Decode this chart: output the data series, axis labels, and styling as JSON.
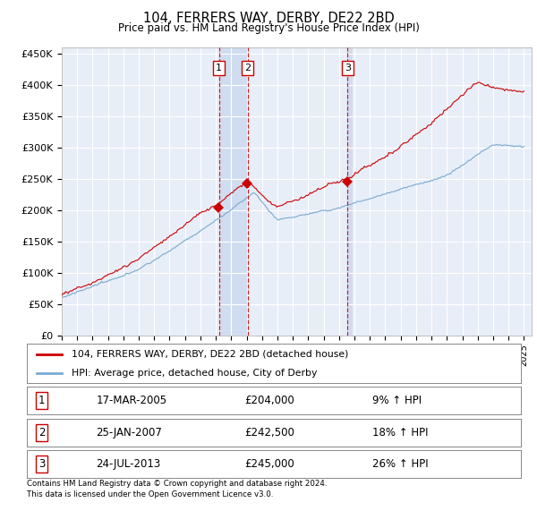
{
  "title": "104, FERRERS WAY, DERBY, DE22 2BD",
  "subtitle": "Price paid vs. HM Land Registry's House Price Index (HPI)",
  "ylabel_ticks": [
    "£0",
    "£50K",
    "£100K",
    "£150K",
    "£200K",
    "£250K",
    "£300K",
    "£350K",
    "£400K",
    "£450K"
  ],
  "ytick_values": [
    0,
    50000,
    100000,
    150000,
    200000,
    250000,
    300000,
    350000,
    400000,
    450000
  ],
  "ylim": [
    0,
    460000
  ],
  "xlim_start": 1995.0,
  "xlim_end": 2025.5,
  "bg_color": "#e8eef8",
  "shade_color": "#d0ddf0",
  "grid_color": "#ffffff",
  "red_line_color": "#cc0000",
  "blue_line_color": "#7aaad0",
  "transaction_markers": [
    {
      "label": "1",
      "year_decimal": 2005.21,
      "price": 204000,
      "date": "17-MAR-2005",
      "pct": "9%"
    },
    {
      "label": "2",
      "year_decimal": 2007.07,
      "price": 242500,
      "date": "25-JAN-2007",
      "pct": "18%"
    },
    {
      "label": "3",
      "year_decimal": 2013.56,
      "price": 245000,
      "date": "24-JUL-2013",
      "pct": "26%"
    }
  ],
  "legend_entry1": "104, FERRERS WAY, DERBY, DE22 2BD (detached house)",
  "legend_entry2": "HPI: Average price, detached house, City of Derby",
  "footer1": "Contains HM Land Registry data © Crown copyright and database right 2024.",
  "footer2": "This data is licensed under the Open Government Licence v3.0.",
  "table_rows": [
    {
      "num": "1",
      "date": "17-MAR-2005",
      "price": "£204,000",
      "pct": "9% ↑ HPI"
    },
    {
      "num": "2",
      "date": "25-JAN-2007",
      "price": "£242,500",
      "pct": "18% ↑ HPI"
    },
    {
      "num": "3",
      "date": "24-JUL-2013",
      "price": "£245,000",
      "pct": "26% ↑ HPI"
    }
  ]
}
